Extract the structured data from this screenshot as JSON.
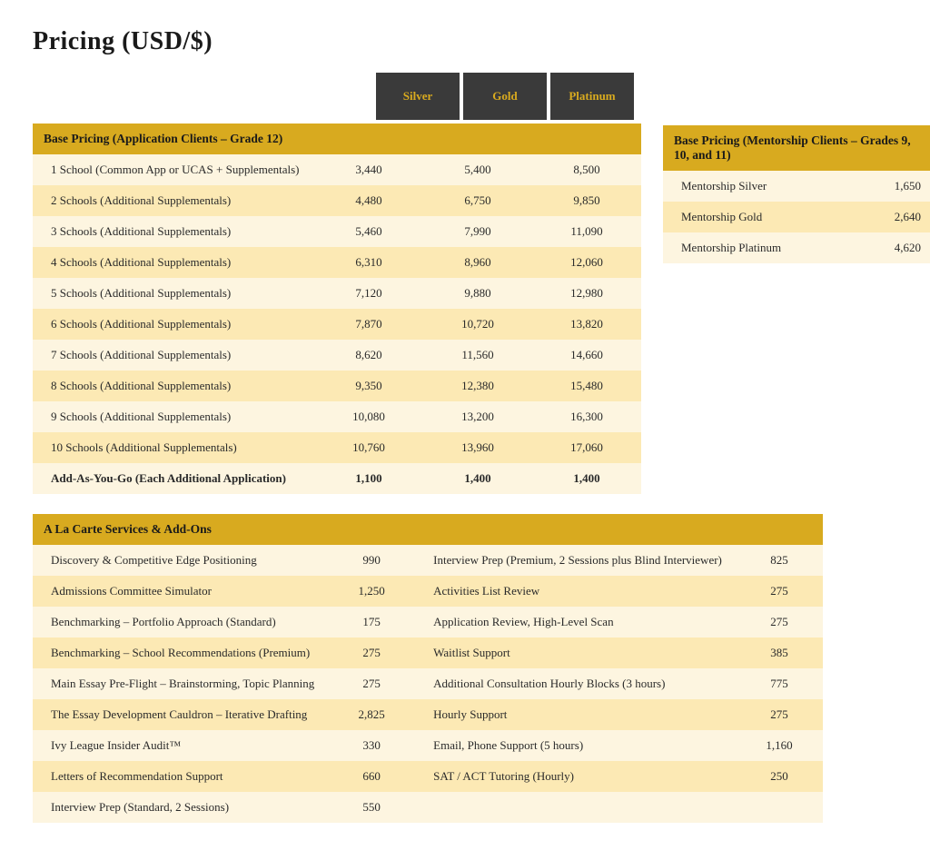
{
  "title": "Pricing (USD/$)",
  "tiers": [
    "Silver",
    "Gold",
    "Platinum"
  ],
  "colors": {
    "header_bg": "#d8aa1f",
    "tab_bg": "#3a3a3a",
    "tab_text": "#d8aa1f",
    "row_light": "#fdf5e0",
    "row_dark": "#fce9b4"
  },
  "base_pricing": {
    "header": "Base Pricing (Application Clients – Grade 12)",
    "rows": [
      {
        "label": "1 School (Common App or UCAS + Supplementals)",
        "silver": "3,440",
        "gold": "5,400",
        "platinum": "8,500"
      },
      {
        "label": "2 Schools (Additional Supplementals)",
        "silver": "4,480",
        "gold": "6,750",
        "platinum": "9,850"
      },
      {
        "label": "3 Schools (Additional Supplementals)",
        "silver": "5,460",
        "gold": "7,990",
        "platinum": "11,090"
      },
      {
        "label": "4 Schools (Additional Supplementals)",
        "silver": "6,310",
        "gold": "8,960",
        "platinum": "12,060"
      },
      {
        "label": "5 Schools (Additional Supplementals)",
        "silver": "7,120",
        "gold": "9,880",
        "platinum": "12,980"
      },
      {
        "label": "6 Schools (Additional Supplementals)",
        "silver": "7,870",
        "gold": "10,720",
        "platinum": "13,820"
      },
      {
        "label": "7 Schools (Additional Supplementals)",
        "silver": "8,620",
        "gold": "11,560",
        "platinum": "14,660"
      },
      {
        "label": "8 Schools (Additional Supplementals)",
        "silver": "9,350",
        "gold": "12,380",
        "platinum": "15,480"
      },
      {
        "label": "9 Schools (Additional Supplementals)",
        "silver": "10,080",
        "gold": "13,200",
        "platinum": "16,300"
      },
      {
        "label": "10 Schools (Additional Supplementals)",
        "silver": "10,760",
        "gold": "13,960",
        "platinum": "17,060"
      },
      {
        "label": "Add-As-You-Go (Each Additional Application)",
        "silver": "1,100",
        "gold": "1,400",
        "platinum": "1,400",
        "bold": true
      }
    ]
  },
  "mentorship": {
    "header": "Base Pricing (Mentorship Clients – Grades 9, 10, and 11)",
    "rows": [
      {
        "label": "Mentorship Silver",
        "price": "1,650"
      },
      {
        "label": "Mentorship Gold",
        "price": "2,640"
      },
      {
        "label": "Mentorship Platinum",
        "price": "4,620"
      }
    ]
  },
  "alacarte": {
    "header": "A La Carte Services & Add-Ons",
    "rows": [
      {
        "l1": "Discovery & Competitive Edge Positioning",
        "p1": "990",
        "l2": "Interview Prep (Premium, 2 Sessions plus Blind Interviewer)",
        "p2": "825"
      },
      {
        "l1": "Admissions Committee Simulator",
        "p1": "1,250",
        "l2": "Activities List Review",
        "p2": "275"
      },
      {
        "l1": "Benchmarking – Portfolio Approach (Standard)",
        "p1": "175",
        "l2": "Application Review, High-Level Scan",
        "p2": "275"
      },
      {
        "l1": "Benchmarking – School Recommendations (Premium)",
        "p1": "275",
        "l2": "Waitlist Support",
        "p2": "385"
      },
      {
        "l1": "Main Essay Pre-Flight – Brainstorming, Topic Planning",
        "p1": "275",
        "l2": "Additional Consultation Hourly Blocks (3 hours)",
        "p2": "775"
      },
      {
        "l1": "The Essay Development Cauldron – Iterative Drafting",
        "p1": "2,825",
        "l2": "Hourly Support",
        "p2": "275"
      },
      {
        "l1": "Ivy League Insider Audit™",
        "p1": "330",
        "l2": "Email, Phone Support (5 hours)",
        "p2": "1,160"
      },
      {
        "l1": "Letters of Recommendation Support",
        "p1": "660",
        "l2": "SAT / ACT Tutoring (Hourly)",
        "p2": "250"
      },
      {
        "l1": "Interview Prep (Standard, 2 Sessions)",
        "p1": "550",
        "l2": "",
        "p2": ""
      }
    ]
  }
}
